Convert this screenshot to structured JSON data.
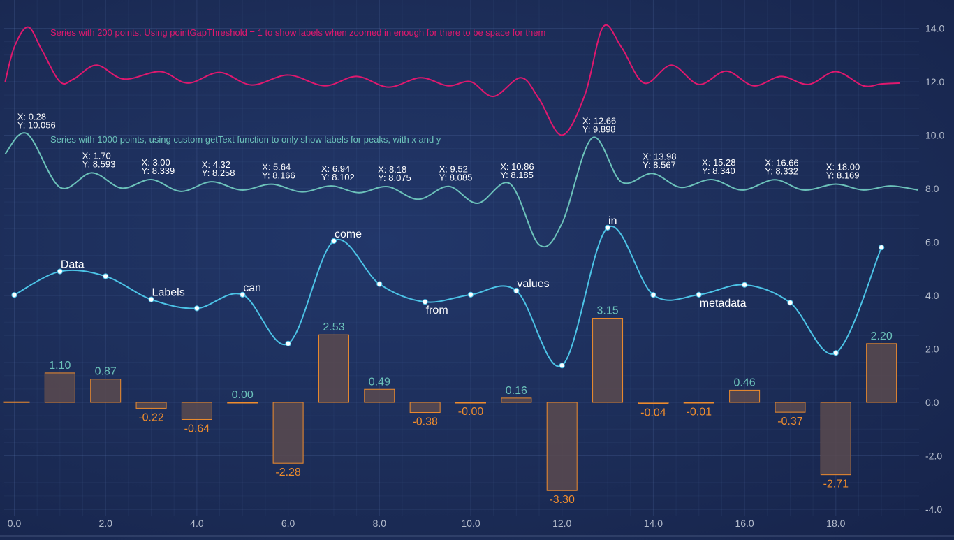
{
  "chart_data": {
    "type": "line",
    "xlim": [
      -0.2,
      19.9
    ],
    "ylim": [
      -4.0,
      14.8
    ],
    "x_ticks": [
      "0.0",
      "2.0",
      "4.0",
      "6.0",
      "8.0",
      "10.0",
      "12.0",
      "14.0",
      "16.0",
      "18.0"
    ],
    "y_ticks": [
      "-4.0",
      "-2.0",
      "0.0",
      "2.0",
      "4.0",
      "6.0",
      "8.0",
      "10.0",
      "12.0",
      "14.0"
    ],
    "grid": true,
    "annotations": [
      "Series with 200 points. Using pointGapThreshold = 1 to show labels when zoomed in enough for there to be space for them",
      "Series with 1000 points, using custom getText function to only show labels for peaks, with x and y"
    ],
    "colors": {
      "pink_line": "#e0186e",
      "teal_line": "#6cc2ba",
      "blue_line": "#4cc3e6",
      "bar_stroke": "#ef8c2d",
      "bar_fill": "#5b4a4f",
      "positive_label": "#6cc2ba",
      "negative_label": "#ef8c2d",
      "axis_label": "#b4bccc"
    },
    "series": [
      {
        "type": "line",
        "points": [
          [
            -0.2,
            12.0
          ],
          [
            0.0,
            13.3
          ],
          [
            0.3,
            14.05
          ],
          [
            0.6,
            13.2
          ],
          [
            1.0,
            12.0
          ],
          [
            1.3,
            12.1
          ],
          [
            1.8,
            12.62
          ],
          [
            2.4,
            12.1
          ],
          [
            3.2,
            12.38
          ],
          [
            3.8,
            11.95
          ],
          [
            4.5,
            12.35
          ],
          [
            5.2,
            11.88
          ],
          [
            6.0,
            12.25
          ],
          [
            6.8,
            11.85
          ],
          [
            7.5,
            12.2
          ],
          [
            8.2,
            11.8
          ],
          [
            8.9,
            12.15
          ],
          [
            9.5,
            11.85
          ],
          [
            10.0,
            12.0
          ],
          [
            10.5,
            11.45
          ],
          [
            11.1,
            12.15
          ],
          [
            11.5,
            11.35
          ],
          [
            12.0,
            10.0
          ],
          [
            12.5,
            11.5
          ],
          [
            12.9,
            14.05
          ],
          [
            13.3,
            13.3
          ],
          [
            13.8,
            11.95
          ],
          [
            14.4,
            12.62
          ],
          [
            15.0,
            11.9
          ],
          [
            15.6,
            12.4
          ],
          [
            16.2,
            11.85
          ],
          [
            16.8,
            12.2
          ],
          [
            17.4,
            11.9
          ],
          [
            18.0,
            12.38
          ],
          [
            18.6,
            11.85
          ],
          [
            19.0,
            11.92
          ],
          [
            19.4,
            11.95
          ]
        ]
      },
      {
        "type": "line",
        "peak_labels": [
          {
            "x": 0.28,
            "y": 10.056,
            "x_text": "X: 0.28",
            "y_text": "Y: 10.056"
          },
          {
            "x": 1.7,
            "y": 8.593,
            "x_text": "X: 1.70",
            "y_text": "Y: 8.593"
          },
          {
            "x": 3.0,
            "y": 8.339,
            "x_text": "X: 3.00",
            "y_text": "Y: 8.339"
          },
          {
            "x": 4.32,
            "y": 8.258,
            "x_text": "X: 4.32",
            "y_text": "Y: 8.258"
          },
          {
            "x": 5.64,
            "y": 8.166,
            "x_text": "X: 5.64",
            "y_text": "Y: 8.166"
          },
          {
            "x": 6.94,
            "y": 8.102,
            "x_text": "X: 6.94",
            "y_text": "Y: 8.102"
          },
          {
            "x": 8.18,
            "y": 8.075,
            "x_text": "X: 8.18",
            "y_text": "Y: 8.075"
          },
          {
            "x": 9.52,
            "y": 8.085,
            "x_text": "X: 9.52",
            "y_text": "Y: 8.085"
          },
          {
            "x": 10.86,
            "y": 8.185,
            "x_text": "X: 10.86",
            "y_text": "Y: 8.185"
          },
          {
            "x": 12.66,
            "y": 9.898,
            "x_text": "X: 12.66",
            "y_text": "Y: 9.898"
          },
          {
            "x": 13.98,
            "y": 8.567,
            "x_text": "X: 13.98",
            "y_text": "Y: 8.567"
          },
          {
            "x": 15.28,
            "y": 8.34,
            "x_text": "X: 15.28",
            "y_text": "Y: 8.340"
          },
          {
            "x": 16.66,
            "y": 8.332,
            "x_text": "X: 16.66",
            "y_text": "Y: 8.332"
          },
          {
            "x": 18.0,
            "y": 8.169,
            "x_text": "X: 18.00",
            "y_text": "Y: 8.169"
          }
        ],
        "points": [
          [
            -0.2,
            9.3
          ],
          [
            0.28,
            10.056
          ],
          [
            1.0,
            8.05
          ],
          [
            1.7,
            8.593
          ],
          [
            2.35,
            8.02
          ],
          [
            3.0,
            8.339
          ],
          [
            3.65,
            7.9
          ],
          [
            4.32,
            8.258
          ],
          [
            4.98,
            7.95
          ],
          [
            5.64,
            8.166
          ],
          [
            6.3,
            7.88
          ],
          [
            6.94,
            8.102
          ],
          [
            7.55,
            7.85
          ],
          [
            8.18,
            8.075
          ],
          [
            8.85,
            7.6
          ],
          [
            9.52,
            8.085
          ],
          [
            10.15,
            7.45
          ],
          [
            10.86,
            8.185
          ],
          [
            11.5,
            5.9
          ],
          [
            12.0,
            6.7
          ],
          [
            12.66,
            9.898
          ],
          [
            13.3,
            8.25
          ],
          [
            13.98,
            8.567
          ],
          [
            14.6,
            8.05
          ],
          [
            15.28,
            8.34
          ],
          [
            15.95,
            7.95
          ],
          [
            16.66,
            8.332
          ],
          [
            17.3,
            7.95
          ],
          [
            18.0,
            8.169
          ],
          [
            18.6,
            7.95
          ],
          [
            19.2,
            8.1
          ],
          [
            19.8,
            7.95
          ]
        ]
      },
      {
        "type": "spline",
        "points": [
          {
            "x": 0,
            "y": 4.02,
            "label": ""
          },
          {
            "x": 1,
            "y": 4.9,
            "label": "Data"
          },
          {
            "x": 2,
            "y": 4.72,
            "label": ""
          },
          {
            "x": 3,
            "y": 3.85,
            "label": "Labels"
          },
          {
            "x": 4,
            "y": 3.52,
            "label": ""
          },
          {
            "x": 5,
            "y": 4.03,
            "label": "can"
          },
          {
            "x": 6,
            "y": 2.2,
            "label": ""
          },
          {
            "x": 7,
            "y": 6.04,
            "label": "come"
          },
          {
            "x": 8,
            "y": 4.43,
            "label": ""
          },
          {
            "x": 9,
            "y": 3.76,
            "label": "from"
          },
          {
            "x": 10,
            "y": 4.03,
            "label": ""
          },
          {
            "x": 11,
            "y": 4.18,
            "label": "values"
          },
          {
            "x": 12,
            "y": 1.38,
            "label": ""
          },
          {
            "x": 13,
            "y": 6.54,
            "label": "in"
          },
          {
            "x": 14,
            "y": 4.02,
            "label": ""
          },
          {
            "x": 15,
            "y": 4.03,
            "label": "metadata"
          },
          {
            "x": 16,
            "y": 4.4,
            "label": ""
          },
          {
            "x": 17,
            "y": 3.73,
            "label": ""
          },
          {
            "x": 18,
            "y": 1.85,
            "label": ""
          },
          {
            "x": 19,
            "y": 5.8,
            "label": ""
          }
        ]
      },
      {
        "type": "bar",
        "points": [
          {
            "x": 0,
            "y": 0.02,
            "label": ""
          },
          {
            "x": 1,
            "y": 1.1,
            "label": "1.10"
          },
          {
            "x": 2,
            "y": 0.87,
            "label": "0.87"
          },
          {
            "x": 3,
            "y": -0.22,
            "label": "-0.22"
          },
          {
            "x": 4,
            "y": -0.64,
            "label": "-0.64"
          },
          {
            "x": 5,
            "y": 0.0,
            "label": "0.00"
          },
          {
            "x": 6,
            "y": -2.28,
            "label": "-2.28"
          },
          {
            "x": 7,
            "y": 2.53,
            "label": "2.53"
          },
          {
            "x": 8,
            "y": 0.49,
            "label": "0.49"
          },
          {
            "x": 9,
            "y": -0.38,
            "label": "-0.38"
          },
          {
            "x": 10,
            "y": -0.0,
            "label": "-0.00"
          },
          {
            "x": 11,
            "y": 0.16,
            "label": "0.16"
          },
          {
            "x": 12,
            "y": -3.3,
            "label": "-3.30"
          },
          {
            "x": 13,
            "y": 3.15,
            "label": "3.15"
          },
          {
            "x": 14,
            "y": -0.04,
            "label": "-0.04"
          },
          {
            "x": 15,
            "y": -0.01,
            "label": "-0.01"
          },
          {
            "x": 16,
            "y": 0.46,
            "label": "0.46"
          },
          {
            "x": 17,
            "y": -0.37,
            "label": "-0.37"
          },
          {
            "x": 18,
            "y": -2.71,
            "label": "-2.71"
          },
          {
            "x": 19,
            "y": 2.2,
            "label": "2.20"
          }
        ]
      }
    ]
  }
}
